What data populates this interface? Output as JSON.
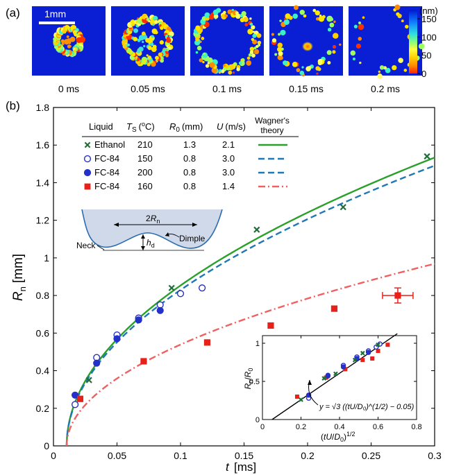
{
  "panel_a": {
    "label": "(a)",
    "scale_bar": "1mm",
    "frames": [
      {
        "time": "0 ms",
        "ring": 0.35,
        "fill": 0.95
      },
      {
        "time": "0.05 ms",
        "ring": 0.62,
        "fill": 0.9
      },
      {
        "time": "0.1 ms",
        "ring": 0.82,
        "fill": 0.7
      },
      {
        "time": "0.15 ms",
        "ring": 0.86,
        "fill": 0.45
      },
      {
        "time": "0.2 ms",
        "ring": 0.88,
        "fill": 0.2
      }
    ],
    "colorbar": {
      "unit": "(nm)",
      "ticks": [
        "150",
        "100",
        "50",
        "0"
      ],
      "tick_values": [
        150,
        100,
        50,
        0
      ],
      "min": 0,
      "max": 175
    }
  },
  "panel_b": {
    "label": "(b)"
  },
  "table": {
    "headers": [
      "Liquid",
      "T",
      "S",
      "(",
      "o",
      "C)",
      "R",
      "0",
      "(mm)",
      "U",
      "(m/s)",
      "Wagner's",
      "theory"
    ],
    "rows": [
      {
        "liquid": "Ethanol",
        "ts": "210",
        "r0": "1.3",
        "u": "2.1",
        "marker": "x",
        "color": "#1f6e3a"
      },
      {
        "liquid": "FC-84",
        "ts": "150",
        "r0": "0.8",
        "u": "3.0",
        "marker": "open-circle",
        "color": "#2430c8"
      },
      {
        "liquid": "FC-84",
        "ts": "200",
        "r0": "0.8",
        "u": "3.0",
        "marker": "filled-circle",
        "color": "#2430c8"
      },
      {
        "liquid": "FC-84",
        "ts": "160",
        "r0": "0.8",
        "u": "1.4",
        "marker": "square",
        "color": "#e8201a"
      }
    ],
    "line_styles": [
      {
        "color": "#2aa02a",
        "dash": "solid"
      },
      {
        "color": "#1f77b4",
        "dash": "dashed"
      },
      {
        "color": "#1f77b4",
        "dash": "dashed"
      },
      {
        "color": "#f06060",
        "dash": "dashdot"
      }
    ]
  },
  "schematic": {
    "width_label_a": "2",
    "width_label_b": "R",
    "width_label_c": "n",
    "height_label_a": "h",
    "height_label_b": "d",
    "neck_label": "Neck",
    "dimple_label": "Dimple"
  },
  "inset": {
    "xlabel_a": "(",
    "xlabel_b": "tU",
    "xlabel_c": "/",
    "xlabel_d": "D",
    "xlabel_e": "0",
    "xlabel_f": ")",
    "xlabel_g": "1/2",
    "ylabel_a": "R",
    "ylabel_b": "n",
    "ylabel_c": "/",
    "ylabel_d": "R",
    "ylabel_e": "0",
    "formula": "y = √3 ((tU/D₀)^(1/2) − 0.05)",
    "xlim": [
      0,
      0.8
    ],
    "ylim": [
      0,
      1.1
    ],
    "xticks": [
      0,
      0.2,
      0.4,
      0.6,
      0.8
    ],
    "xtick_labels": [
      "0",
      "0.2",
      "0.4",
      "0.6",
      "0.8"
    ],
    "yticks": [
      0,
      0.5,
      1
    ],
    "ytick_labels": [
      "0",
      "0.5",
      "1"
    ],
    "fit": {
      "x": [
        0.05,
        0.7
      ],
      "y": [
        0,
        1.126
      ]
    },
    "points": [
      {
        "marker": "square",
        "color": "#e8201a",
        "x": [
          0.18,
          0.33,
          0.43,
          0.52,
          0.57,
          0.6,
          0.65
        ],
        "y": [
          0.3,
          0.55,
          0.66,
          0.78,
          0.8,
          0.9,
          0.98
        ]
      },
      {
        "marker": "open-circle",
        "color": "#2430c8",
        "x": [
          0.24,
          0.34,
          0.42,
          0.49,
          0.55,
          0.59,
          0.61
        ],
        "y": [
          0.28,
          0.58,
          0.71,
          0.82,
          0.9,
          0.95,
          0.99
        ]
      },
      {
        "marker": "filled-circle",
        "color": "#2430c8",
        "x": [
          0.24,
          0.34,
          0.42,
          0.49,
          0.55
        ],
        "y": [
          0.32,
          0.57,
          0.69,
          0.8,
          0.88
        ]
      },
      {
        "marker": "x",
        "color": "#1f6e3a",
        "x": [
          0.2,
          0.32,
          0.38,
          0.48,
          0.52,
          0.6
        ],
        "y": [
          0.26,
          0.54,
          0.6,
          0.78,
          0.87,
          0.98
        ]
      }
    ]
  },
  "chart_data": {
    "type": "scatter",
    "xlabel": "t [ms]",
    "ylabel_a": "R",
    "ylabel_b": "n",
    "ylabel_c": "[mm]",
    "xlim": [
      0,
      0.3
    ],
    "ylim": [
      0,
      1.8
    ],
    "xticks": [
      0,
      0.05,
      0.1,
      0.15,
      0.2,
      0.25,
      0.3
    ],
    "xtick_labels": [
      "0",
      "0.05",
      "0.1",
      "0.15",
      "0.2",
      "0.25",
      "0.3"
    ],
    "yticks": [
      0,
      0.2,
      0.4,
      0.6,
      0.8,
      1,
      1.2,
      1.4,
      1.6,
      1.8
    ],
    "ytick_labels": [
      "0",
      "0.2",
      "0.4",
      "0.6",
      "0.8",
      "1",
      "1.2",
      "1.4",
      "1.6",
      "1.8"
    ],
    "series": [
      {
        "marker": "x",
        "color": "#1f6e3a",
        "x": [
          0.028,
          0.093,
          0.16,
          0.228,
          0.294
        ],
        "y": [
          0.35,
          0.84,
          1.15,
          1.27,
          1.54
        ]
      },
      {
        "marker": "open-circle",
        "color": "#2430c8",
        "x": [
          0.017,
          0.034,
          0.05,
          0.067,
          0.084,
          0.1,
          0.117
        ],
        "y": [
          0.22,
          0.47,
          0.59,
          0.68,
          0.75,
          0.81,
          0.84
        ]
      },
      {
        "marker": "filled-circle",
        "color": "#2430c8",
        "x": [
          0.017,
          0.034,
          0.05,
          0.067,
          0.084
        ],
        "y": [
          0.27,
          0.44,
          0.57,
          0.67,
          0.72
        ]
      },
      {
        "marker": "square",
        "color": "#e8201a",
        "x": [
          0.021,
          0.071,
          0.121,
          0.171,
          0.221,
          0.271
        ],
        "y": [
          0.25,
          0.45,
          0.55,
          0.64,
          0.73,
          0.8
        ]
      }
    ],
    "error_bar": {
      "x": 0.271,
      "y": 0.8,
      "xerr": 0.012,
      "yerr": 0.04
    },
    "theory_curves": [
      {
        "color": "#2aa02a",
        "dash": "solid",
        "t0": 0.0104,
        "coef": 2.85
      },
      {
        "color": "#1f77b4",
        "dash": "dashed",
        "t0": 0.0104,
        "coef": 2.77
      },
      {
        "color": "#f06060",
        "dash": "dashdot",
        "t0": 0.0104,
        "coef": 1.8
      }
    ]
  }
}
